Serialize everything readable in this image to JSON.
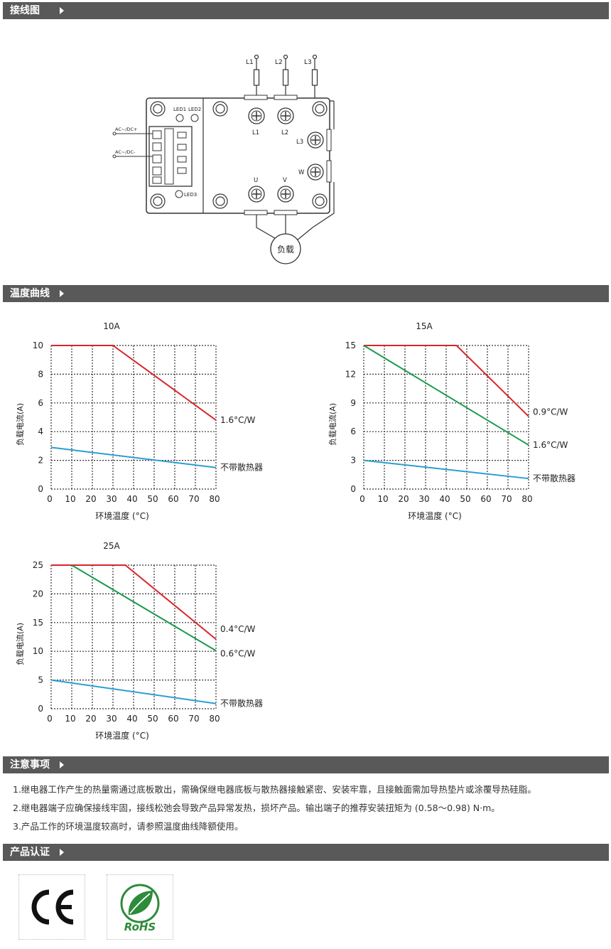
{
  "sections": {
    "wiring": "接线图",
    "temperature": "温度曲线",
    "notes": "注意事项",
    "certification": "产品认证"
  },
  "wiring": {
    "inputs": [
      "L1",
      "L2",
      "L3"
    ],
    "leds": [
      "LED1",
      "LED2",
      "LED3"
    ],
    "ac_dc_plus": "AC~/DC+",
    "ac_dc_minus": "AC~/DC-",
    "terminals": {
      "l1": "L1",
      "l2": "L2",
      "l3": "L3",
      "u": "U",
      "v": "V",
      "w": "W"
    },
    "load": "负载"
  },
  "chart_data": [
    {
      "type": "line",
      "title": "10A",
      "xlabel": "环境温度 (°C)",
      "ylabel": "负载电流(A)",
      "xlim": [
        0,
        80
      ],
      "ylim": [
        0,
        10
      ],
      "x_ticks": [
        0,
        10,
        20,
        30,
        40,
        50,
        60,
        70,
        80
      ],
      "y_ticks": [
        0,
        2,
        4,
        6,
        8,
        10
      ],
      "grid": "dotted",
      "series": [
        {
          "name": "1.6°C/W",
          "color": "#d9262b",
          "points": [
            [
              0,
              10
            ],
            [
              30,
              10
            ],
            [
              80,
              4.8
            ]
          ]
        },
        {
          "name": "不带散热器",
          "color": "#2b9ed1",
          "points": [
            [
              0,
              2.9
            ],
            [
              80,
              1.5
            ]
          ]
        }
      ]
    },
    {
      "type": "line",
      "title": "15A",
      "xlabel": "环境温度 (°C)",
      "ylabel": "负载电流(A)",
      "xlim": [
        0,
        80
      ],
      "ylim": [
        0,
        15
      ],
      "x_ticks": [
        0,
        10,
        20,
        30,
        40,
        50,
        60,
        70,
        80
      ],
      "y_ticks": [
        0,
        3,
        6,
        9,
        12,
        15
      ],
      "grid": "dotted",
      "series": [
        {
          "name": "0.9°C/W",
          "color": "#d9262b",
          "points": [
            [
              0,
              15
            ],
            [
              45,
              15
            ],
            [
              80,
              7.6
            ]
          ]
        },
        {
          "name": "1.6°C/W",
          "color": "#1a9a4b",
          "points": [
            [
              0,
              15
            ],
            [
              80,
              4.6
            ]
          ]
        },
        {
          "name": "不带散热器",
          "color": "#2b9ed1",
          "points": [
            [
              0,
              3.0
            ],
            [
              80,
              1.1
            ]
          ]
        }
      ]
    },
    {
      "type": "line",
      "title": "25A",
      "xlabel": "环境温度 (°C)",
      "ylabel": "负载电流(A)",
      "xlim": [
        0,
        80
      ],
      "ylim": [
        0,
        25
      ],
      "x_ticks": [
        0,
        10,
        20,
        30,
        40,
        50,
        60,
        70,
        80
      ],
      "y_ticks": [
        0,
        5,
        10,
        15,
        20,
        25
      ],
      "grid": "dotted",
      "series": [
        {
          "name": "0.4°C/W",
          "color": "#d9262b",
          "points": [
            [
              0,
              25
            ],
            [
              36,
              25
            ],
            [
              80,
              12.1
            ]
          ]
        },
        {
          "name": "0.6°C/W",
          "color": "#1a9a4b",
          "points": [
            [
              10,
              25
            ],
            [
              80,
              10.1
            ]
          ]
        },
        {
          "name": "不带散热器",
          "color": "#2b9ed1",
          "points": [
            [
              0,
              5.0
            ],
            [
              80,
              0.9
            ]
          ]
        }
      ]
    }
  ],
  "notes": [
    "1.继电器工作产生的热量需通过底板散出，需确保继电器底板与散热器接触紧密、安装牢靠，且接触面需加导热垫片或涂覆导热硅脂。",
    "2.继电器端子应确保接线牢固，接线松弛会导致产品异常发热，损坏产品。输出端子的推荐安装扭矩为 (0.58～0.98) N·m。",
    "3.产品工作的环境温度较高时，请参照温度曲线降额使用。"
  ],
  "certs": {
    "ce": "CE",
    "rohs": "RoHS"
  }
}
